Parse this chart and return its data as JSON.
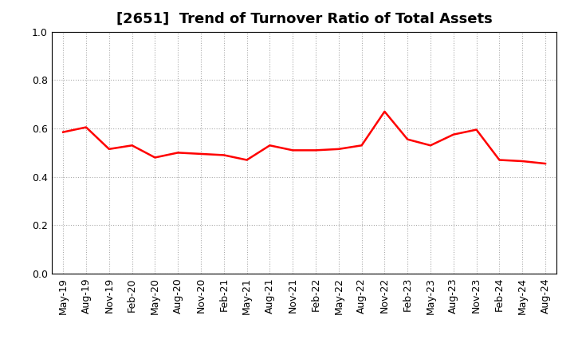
{
  "title": "[2651]  Trend of Turnover Ratio of Total Assets",
  "labels": [
    "May-19",
    "Aug-19",
    "Nov-19",
    "Feb-20",
    "May-20",
    "Aug-20",
    "Nov-20",
    "Feb-21",
    "May-21",
    "Aug-21",
    "Nov-21",
    "Feb-22",
    "May-22",
    "Aug-22",
    "Nov-22",
    "Feb-23",
    "May-23",
    "Aug-23",
    "Nov-23",
    "Feb-24",
    "May-24",
    "Aug-24"
  ],
  "values": [
    0.585,
    0.605,
    0.515,
    0.53,
    0.48,
    0.5,
    0.495,
    0.49,
    0.47,
    0.53,
    0.51,
    0.51,
    0.515,
    0.53,
    0.67,
    0.555,
    0.53,
    0.575,
    0.595,
    0.47,
    0.465,
    0.455
  ],
  "line_color": "#FF0000",
  "line_width": 1.8,
  "ylim": [
    0.0,
    1.0
  ],
  "yticks": [
    0.0,
    0.2,
    0.4,
    0.6,
    0.8,
    1.0
  ],
  "grid_color": "#aaaaaa",
  "grid_style": "dotted",
  "background_color": "#ffffff",
  "title_fontsize": 13,
  "tick_fontsize": 9
}
